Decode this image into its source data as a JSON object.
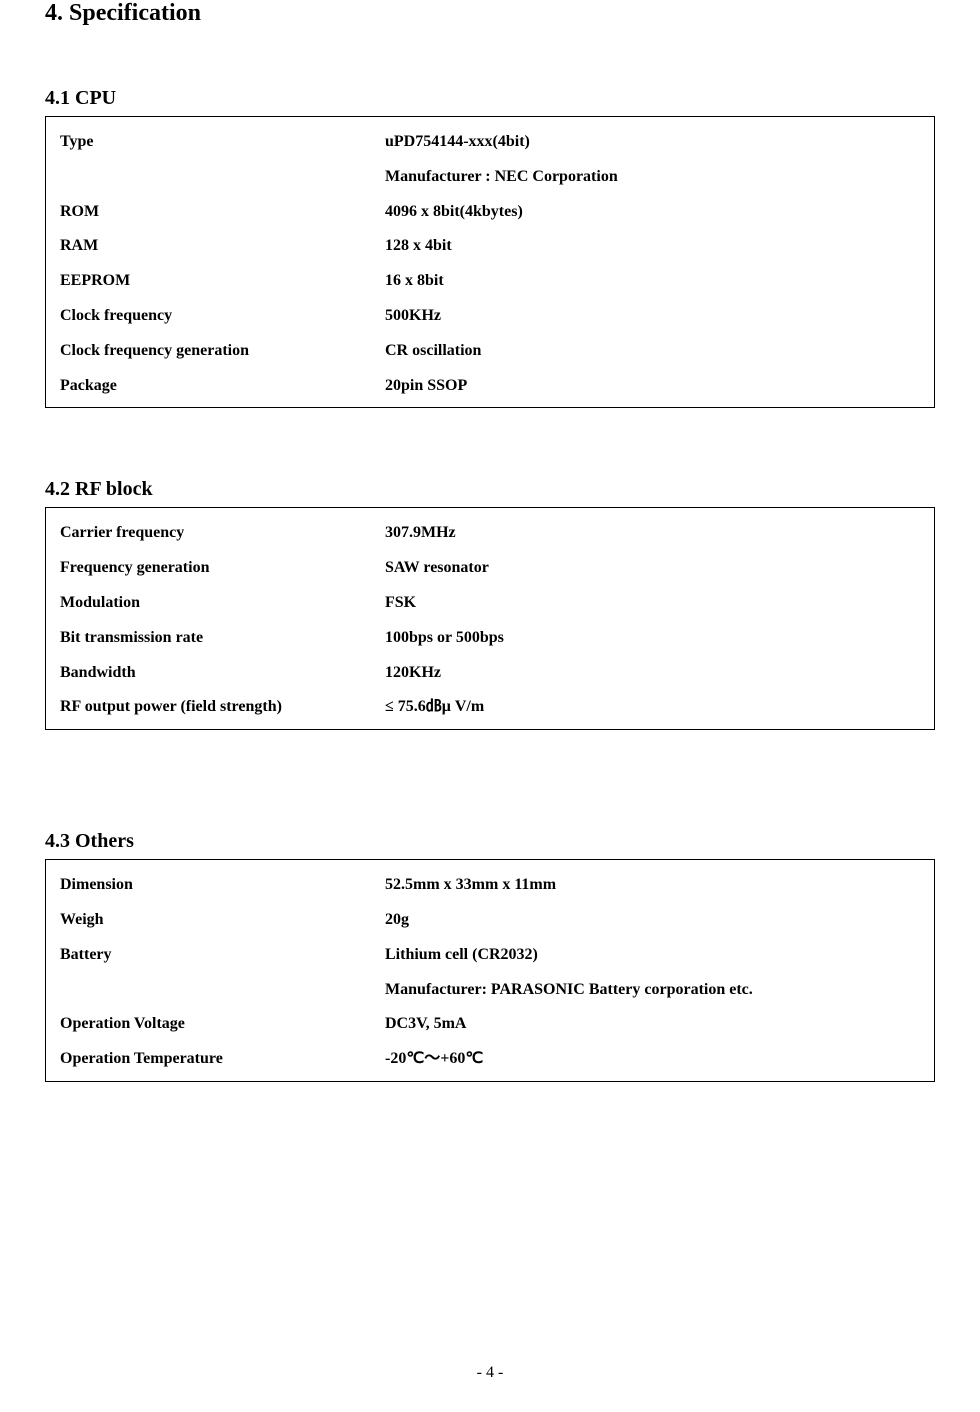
{
  "title": "4. Specification",
  "sections": [
    {
      "heading": "4.1 CPU",
      "rows": [
        {
          "label": "Type",
          "value": "uPD754144-xxx(4bit)"
        },
        {
          "label": "",
          "value": "Manufacturer : NEC Corporation"
        },
        {
          "label": "ROM",
          "value": "4096 x 8bit(4kbytes)"
        },
        {
          "label": "RAM",
          "value": "128 x 4bit"
        },
        {
          "label": "EEPROM",
          "value": "16 x 8bit"
        },
        {
          "label": "Clock frequency",
          "value": "500KHz"
        },
        {
          "label": "Clock frequency generation",
          "value": "CR oscillation"
        },
        {
          "label": "Package",
          "value": "20pin SSOP"
        }
      ]
    },
    {
      "heading": "4.2 RF block",
      "rows": [
        {
          "label": "Carrier frequency",
          "value": "307.9MHz"
        },
        {
          "label": "Frequency generation",
          "value": "SAW resonator"
        },
        {
          "label": "Modulation",
          "value": "FSK"
        },
        {
          "label": "Bit transmission rate",
          "value": "100bps or 500bps"
        },
        {
          "label": "Bandwidth",
          "value": "120KHz"
        },
        {
          "label": "RF output power (field strength)",
          "value": "≤ 75.6㏈μ V/m"
        }
      ]
    },
    {
      "heading": "4.3 Others",
      "rows": [
        {
          "label": "Dimension",
          "value": "52.5mm x 33mm x 11mm"
        },
        {
          "label": "Weigh",
          "value": "20g"
        },
        {
          "label": "Battery",
          "value": "Lithium cell (CR2032)"
        },
        {
          "label": "",
          "value": "Manufacturer: PARASONIC Battery corporation etc."
        },
        {
          "label": "Operation Voltage",
          "value": "DC3V, 5mA"
        },
        {
          "label": "Operation Temperature",
          "value": "-20℃～+60℃"
        }
      ]
    }
  ],
  "footer": "- 4 -"
}
